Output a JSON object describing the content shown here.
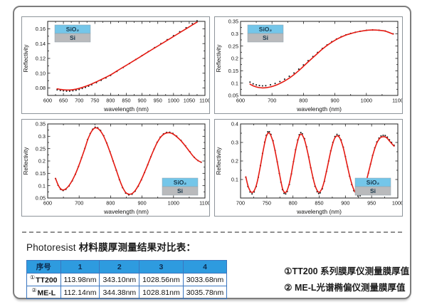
{
  "page": {
    "accent_red": "#e51a12",
    "legend_blue": "#74c6e9",
    "legend_gray": "#b9babc",
    "table_header_blue": "#2e9bdf",
    "table_border_blue": "#3a76c0"
  },
  "bottom": {
    "title_en": "Photoresist ",
    "title_zh": "材料膜厚测量结果对比表："
  },
  "comparison_table": {
    "headers": [
      "序号",
      "1",
      "2",
      "3",
      "4"
    ],
    "rows": [
      {
        "mark": "①",
        "name": "TT200",
        "values": [
          "113.98nm",
          "343.10nm",
          "1028.56nm",
          "3033.68nm"
        ]
      },
      {
        "mark": "②",
        "name": "ME-L",
        "values": [
          "112.14nm",
          "344.38nm",
          "1028.81nm",
          "3035.78nm"
        ]
      }
    ]
  },
  "notes": [
    "①TT200 系列膜厚仪测量膜厚值",
    "② ME-L光谱椭偏仪测量膜厚值"
  ],
  "chart_data": [
    {
      "type": "line",
      "title": "SiO2 on Si thin film reflectivity (sample 1)",
      "xlabel": "wavelength (nm)",
      "ylabel": "Reflectivity",
      "xlim": [
        600,
        1100
      ],
      "ylim": [
        0.07,
        0.17
      ],
      "xticks": [
        600,
        650,
        700,
        750,
        800,
        850,
        900,
        950,
        1000,
        1050,
        1100
      ],
      "xticklabels": [
        "600",
        "650",
        "700",
        "750",
        "800",
        "850",
        "900",
        "950",
        "1000",
        "1050",
        "1100"
      ],
      "yticks": [
        0.08,
        0.1,
        0.12,
        0.14,
        0.16
      ],
      "yticklabels": [
        "0.08",
        "0.10",
        "0.12",
        "0.14",
        "0.16"
      ],
      "legend": {
        "position": "top-left",
        "entries": [
          {
            "label": "SiO₂",
            "color": "#74c6e9"
          },
          {
            "label": "Si",
            "color": "#b9babc"
          }
        ]
      },
      "line_color": "#e51a12",
      "dot_color": "#1a1a1a",
      "measured": {
        "center": 0.12,
        "gain": 1.035
      },
      "fit": [
        [
          630,
          0.079
        ],
        [
          640,
          0.0782
        ],
        [
          650,
          0.0777
        ],
        [
          660,
          0.0774
        ],
        [
          670,
          0.0774
        ],
        [
          680,
          0.0778
        ],
        [
          690,
          0.0785
        ],
        [
          700,
          0.0795
        ],
        [
          710,
          0.0808
        ],
        [
          720,
          0.0822
        ],
        [
          730,
          0.0838
        ],
        [
          740,
          0.0856
        ],
        [
          755,
          0.0884
        ],
        [
          770,
          0.0914
        ],
        [
          785,
          0.0945
        ],
        [
          800,
          0.0978
        ],
        [
          820,
          0.103
        ],
        [
          840,
          0.1082
        ],
        [
          860,
          0.1133
        ],
        [
          880,
          0.1185
        ],
        [
          900,
          0.1237
        ],
        [
          920,
          0.1289
        ],
        [
          940,
          0.1341
        ],
        [
          960,
          0.1392
        ],
        [
          980,
          0.1444
        ],
        [
          1000,
          0.1496
        ],
        [
          1020,
          0.1548
        ],
        [
          1040,
          0.16
        ],
        [
          1060,
          0.1652
        ],
        [
          1075,
          0.169
        ]
      ]
    },
    {
      "type": "line",
      "title": "SiO2 on Si thin film reflectivity (sample 2)",
      "xlabel": "wavelength (nm)",
      "ylabel": "Reflectivity",
      "xlim": [
        600,
        1100
      ],
      "ylim": [
        0.05,
        0.35
      ],
      "xticks": [
        600,
        700,
        800,
        900,
        1000,
        1100
      ],
      "xticklabels": [
        "600",
        "700",
        "800",
        "900",
        "1000",
        "1100"
      ],
      "yticks": [
        0.05,
        0.1,
        0.15,
        0.2,
        0.25,
        0.3,
        0.35
      ],
      "yticklabels": [
        "0.05",
        "0.1",
        "0.15",
        "0.2",
        "0.25",
        "0.3",
        "0.35"
      ],
      "legend": {
        "position": "top-left",
        "entries": [
          {
            "label": "SiO₂",
            "color": "#74c6e9"
          },
          {
            "label": "Si",
            "color": "#b9babc"
          }
        ]
      },
      "line_color": "#e51a12",
      "dot_color": "#1a1a1a",
      "measured": {
        "center": 0.32,
        "gain": 0.965
      },
      "fit": [
        [
          630,
          0.096
        ],
        [
          640,
          0.089
        ],
        [
          650,
          0.0845
        ],
        [
          660,
          0.0818
        ],
        [
          670,
          0.0806
        ],
        [
          680,
          0.0812
        ],
        [
          695,
          0.0846
        ],
        [
          710,
          0.0905
        ],
        [
          725,
          0.0985
        ],
        [
          740,
          0.1085
        ],
        [
          755,
          0.1205
        ],
        [
          770,
          0.1345
        ],
        [
          785,
          0.1505
        ],
        [
          800,
          0.168
        ],
        [
          815,
          0.186
        ],
        [
          830,
          0.2035
        ],
        [
          845,
          0.2205
        ],
        [
          860,
          0.2375
        ],
        [
          875,
          0.2525
        ],
        [
          890,
          0.2655
        ],
        [
          905,
          0.277
        ],
        [
          920,
          0.2865
        ],
        [
          935,
          0.2945
        ],
        [
          950,
          0.3005
        ],
        [
          965,
          0.3055
        ],
        [
          980,
          0.3095
        ],
        [
          1000,
          0.3135
        ],
        [
          1020,
          0.315
        ],
        [
          1040,
          0.314
        ],
        [
          1060,
          0.3105
        ],
        [
          1085,
          0.2985
        ]
      ]
    },
    {
      "type": "line",
      "title": "SiO2 on Si thin film reflectivity (sample 3)",
      "xlabel": "wavelength (nm)",
      "ylabel": "Reflectivity",
      "xlim": [
        600,
        1100
      ],
      "ylim": [
        0.05,
        0.35
      ],
      "xticks": [
        600,
        700,
        800,
        900,
        1000,
        1100
      ],
      "xticklabels": [
        "600",
        "700",
        "800",
        "900",
        "1000",
        "1100"
      ],
      "yticks": [
        0.05,
        0.1,
        0.15,
        0.2,
        0.25,
        0.3,
        0.35
      ],
      "yticklabels": [
        "0.05",
        "0.1",
        "0.15",
        "0.2",
        "0.25",
        "0.3",
        "0.35"
      ],
      "legend": {
        "position": "bottom-right",
        "entries": [
          {
            "label": "SiO₂",
            "color": "#74c6e9"
          },
          {
            "label": "Si",
            "color": "#b9babc"
          }
        ]
      },
      "line_color": "#e51a12",
      "dot_color": "#1a1a1a",
      "measured": {
        "center": 0.2,
        "gain": 1.02
      },
      "fit": [
        [
          625,
          0.13
        ],
        [
          633,
          0.1035
        ],
        [
          641,
          0.0875
        ],
        [
          649,
          0.0825
        ],
        [
          658,
          0.0875
        ],
        [
          668,
          0.101
        ],
        [
          678,
          0.121
        ],
        [
          688,
          0.147
        ],
        [
          698,
          0.178
        ],
        [
          708,
          0.213
        ],
        [
          718,
          0.25
        ],
        [
          727,
          0.285
        ],
        [
          735,
          0.309
        ],
        [
          743,
          0.326
        ],
        [
          751,
          0.334
        ],
        [
          759,
          0.332
        ],
        [
          768,
          0.321
        ],
        [
          778,
          0.3
        ],
        [
          788,
          0.271
        ],
        [
          798,
          0.237
        ],
        [
          808,
          0.2
        ],
        [
          818,
          0.163
        ],
        [
          828,
          0.126
        ],
        [
          838,
          0.094
        ],
        [
          848,
          0.0725
        ],
        [
          858,
          0.0655
        ],
        [
          868,
          0.068
        ],
        [
          878,
          0.08
        ],
        [
          888,
          0.1
        ],
        [
          898,
          0.125
        ],
        [
          908,
          0.154
        ],
        [
          918,
          0.185
        ],
        [
          928,
          0.217
        ],
        [
          938,
          0.247
        ],
        [
          948,
          0.274
        ],
        [
          958,
          0.2945
        ],
        [
          968,
          0.3075
        ],
        [
          978,
          0.3135
        ],
        [
          988,
          0.314
        ],
        [
          998,
          0.3095
        ],
        [
          1010,
          0.2985
        ],
        [
          1024,
          0.2815
        ],
        [
          1038,
          0.26
        ],
        [
          1052,
          0.2365
        ],
        [
          1066,
          0.2145
        ],
        [
          1078,
          0.2015
        ],
        [
          1088,
          0.195
        ]
      ]
    },
    {
      "type": "line",
      "title": "SiO2 on Si thin film reflectivity (sample 4)",
      "xlabel": "wavelength (nm)",
      "ylabel": "Reflectivity",
      "xlim": [
        700,
        1000
      ],
      "ylim": [
        0.0,
        0.4
      ],
      "xticks": [
        700,
        750,
        800,
        850,
        900,
        950,
        1000
      ],
      "xticklabels": [
        "700",
        "750",
        "800",
        "850",
        "900",
        "950",
        "1000"
      ],
      "yticks": [
        0.1,
        0.2,
        0.3,
        0.4
      ],
      "yticklabels": [
        "0.1",
        "0.2",
        "0.3",
        "0.4"
      ],
      "legend": {
        "position": "bottom-right",
        "entries": [
          {
            "label": "SiO₂",
            "color": "#74c6e9"
          },
          {
            "label": "Si",
            "color": "#b9babc"
          }
        ]
      },
      "line_color": "#e51a12",
      "dot_color": "#1a1a1a",
      "measured": {
        "center": 0.185,
        "gain": 1.05
      },
      "fit": [
        [
          710,
          0.115
        ],
        [
          714,
          0.068
        ],
        [
          718,
          0.04
        ],
        [
          722,
          0.03
        ],
        [
          726,
          0.04
        ],
        [
          730,
          0.068
        ],
        [
          734,
          0.115
        ],
        [
          738,
          0.175
        ],
        [
          742,
          0.238
        ],
        [
          746,
          0.296
        ],
        [
          749,
          0.331
        ],
        [
          752,
          0.349
        ],
        [
          755,
          0.35
        ],
        [
          758,
          0.336
        ],
        [
          762,
          0.303
        ],
        [
          766,
          0.253
        ],
        [
          770,
          0.195
        ],
        [
          774,
          0.135
        ],
        [
          777,
          0.09
        ],
        [
          780,
          0.052
        ],
        [
          783,
          0.033
        ],
        [
          786,
          0.03
        ],
        [
          789,
          0.042
        ],
        [
          793,
          0.078
        ],
        [
          797,
          0.133
        ],
        [
          801,
          0.196
        ],
        [
          805,
          0.257
        ],
        [
          809,
          0.307
        ],
        [
          812,
          0.334
        ],
        [
          815,
          0.345
        ],
        [
          818,
          0.339
        ],
        [
          822,
          0.314
        ],
        [
          826,
          0.272
        ],
        [
          830,
          0.22
        ],
        [
          834,
          0.164
        ],
        [
          838,
          0.112
        ],
        [
          842,
          0.069
        ],
        [
          846,
          0.041
        ],
        [
          849,
          0.032
        ],
        [
          852,
          0.035
        ],
        [
          856,
          0.056
        ],
        [
          860,
          0.095
        ],
        [
          864,
          0.145
        ],
        [
          868,
          0.199
        ],
        [
          872,
          0.251
        ],
        [
          876,
          0.295
        ],
        [
          880,
          0.325
        ],
        [
          884,
          0.336
        ],
        [
          888,
          0.33
        ],
        [
          892,
          0.307
        ],
        [
          896,
          0.27
        ],
        [
          900,
          0.222
        ],
        [
          904,
          0.17
        ],
        [
          908,
          0.121
        ],
        [
          912,
          0.078
        ],
        [
          916,
          0.046
        ],
        [
          920,
          0.026
        ],
        [
          924,
          0.019
        ],
        [
          928,
          0.02
        ],
        [
          932,
          0.033
        ],
        [
          936,
          0.058
        ],
        [
          940,
          0.094
        ],
        [
          944,
          0.137
        ],
        [
          948,
          0.183
        ],
        [
          952,
          0.228
        ],
        [
          956,
          0.267
        ],
        [
          960,
          0.297
        ],
        [
          964,
          0.317
        ],
        [
          968,
          0.328
        ],
        [
          972,
          0.331
        ],
        [
          976,
          0.33
        ],
        [
          980,
          0.322
        ],
        [
          984,
          0.308
        ],
        [
          988,
          0.295
        ],
        [
          993,
          0.28
        ]
      ]
    }
  ]
}
